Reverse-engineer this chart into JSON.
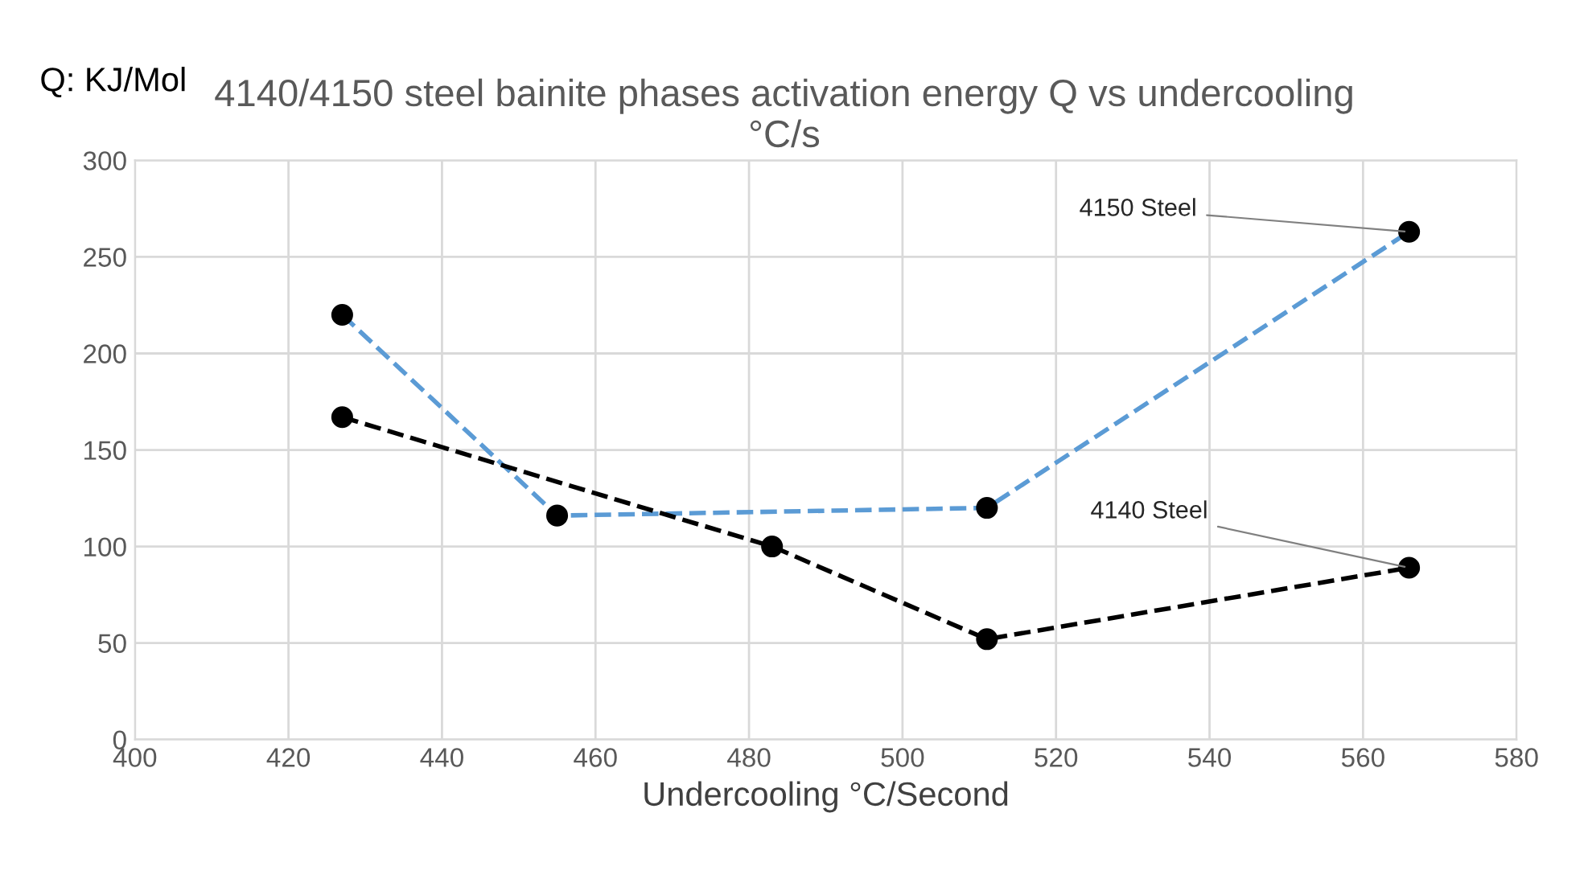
{
  "chart_data": {
    "type": "line",
    "title": "4140/4150 steel bainite phases activation energy Q vs undercooling\n°C/s",
    "ylabel": "Q: KJ/Mol",
    "xlabel": "Undercooling °C/Second",
    "series": [
      {
        "name": "4150 Steel",
        "color": "#5b9bd5",
        "x": [
          427,
          455,
          511,
          566
        ],
        "values": [
          220,
          116,
          120,
          263
        ]
      },
      {
        "name": "4140 Steel",
        "color": "#000000",
        "x": [
          427,
          483,
          511,
          566
        ],
        "values": [
          167,
          100,
          52,
          89
        ]
      }
    ],
    "xlim": [
      400,
      580
    ],
    "xticks": [
      400,
      420,
      440,
      460,
      480,
      500,
      520,
      540,
      560,
      580
    ],
    "ylim": [
      0,
      300
    ],
    "yticks": [
      0,
      50,
      100,
      150,
      200,
      250,
      300
    ],
    "grid": true,
    "legend": false,
    "marker": "circle",
    "line_style": "dashed"
  }
}
